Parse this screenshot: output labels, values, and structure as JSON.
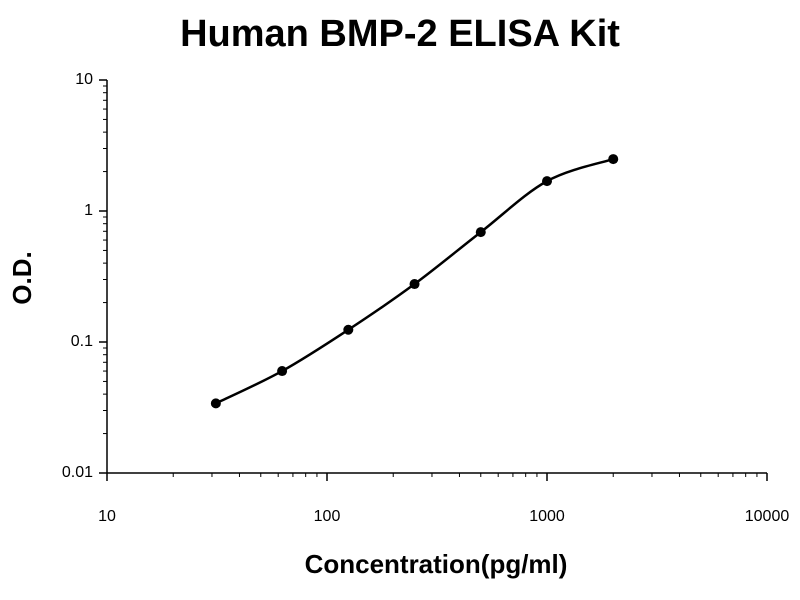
{
  "chart_data": {
    "type": "line",
    "title": "Human BMP-2 ELISA Kit",
    "x_label": "Concentration(pg/ml)",
    "y_label": "O.D.",
    "x": [
      31.25,
      62.5,
      125,
      250,
      500,
      1000,
      2000
    ],
    "series": [
      {
        "values": [
          0.034,
          0.06,
          0.124,
          0.277,
          0.69,
          1.69,
          2.49
        ],
        "color": "#000000"
      }
    ],
    "x_log": true,
    "y_log": true,
    "minor_ticks": true,
    "smooth": true,
    "markers": true,
    "xlim": [
      10,
      10000
    ],
    "xticks": [
      10,
      100,
      1000,
      10000
    ],
    "ylim": [
      0.01,
      10
    ],
    "yticks": [
      0.01,
      0.1,
      1,
      10
    ]
  }
}
